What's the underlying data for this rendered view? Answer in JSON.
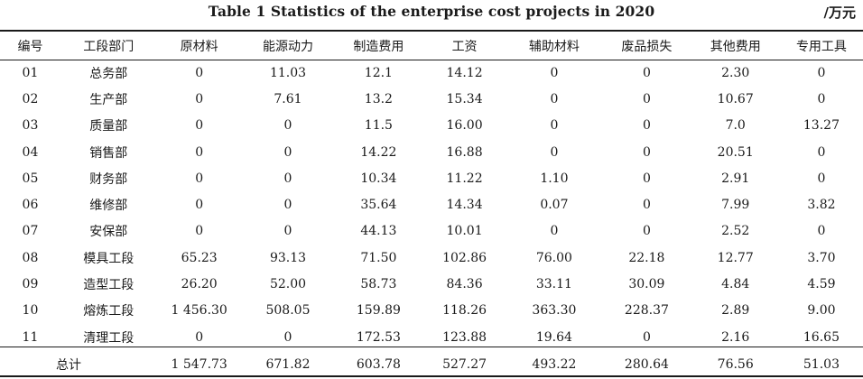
{
  "title": "Table 1 Statistics of the enterprise cost projects in 2020",
  "unit": "/万元",
  "columns": [
    "编号",
    "工段部门",
    "原材料",
    "能源动力",
    "制造费用",
    "工资",
    "辅助材料",
    "废品损失",
    "其他费用",
    "专用工具"
  ],
  "rows": [
    [
      "01",
      "总务部",
      "0",
      "11.03",
      "12.1",
      "14.12",
      "0",
      "0",
      "2.30",
      "0"
    ],
    [
      "02",
      "生产部",
      "0",
      "7.61",
      "13.2",
      "15.34",
      "0",
      "0",
      "10.67",
      "0"
    ],
    [
      "03",
      "质量部",
      "0",
      "0",
      "11.5",
      "16.00",
      "0",
      "0",
      "7.0",
      "13.27"
    ],
    [
      "04",
      "销售部",
      "0",
      "0",
      "14.22",
      "16.88",
      "0",
      "0",
      "20.51",
      "0"
    ],
    [
      "05",
      "财务部",
      "0",
      "0",
      "10.34",
      "11.22",
      "1.10",
      "0",
      "2.91",
      "0"
    ],
    [
      "06",
      "维修部",
      "0",
      "0",
      "35.64",
      "14.34",
      "0.07",
      "0",
      "7.99",
      "3.82"
    ],
    [
      "07",
      "安保部",
      "0",
      "0",
      "44.13",
      "10.01",
      "0",
      "0",
      "2.52",
      "0"
    ],
    [
      "08",
      "模具工段",
      "65.23",
      "93.13",
      "71.50",
      "102.86",
      "76.00",
      "22.18",
      "12.77",
      "3.70"
    ],
    [
      "09",
      "造型工段",
      "26.20",
      "52.00",
      "58.73",
      "84.36",
      "33.11",
      "30.09",
      "4.84",
      "4.59"
    ],
    [
      "10",
      "熔炼工段",
      "1 456.30",
      "508.05",
      "159.89",
      "118.26",
      "363.30",
      "228.37",
      "2.89",
      "9.00"
    ],
    [
      "11",
      "清理工段",
      "0",
      "0",
      "172.53",
      "123.88",
      "19.64",
      "0",
      "2.16",
      "16.65"
    ]
  ],
  "total": {
    "label": "总计",
    "values": [
      "1 547.73",
      "671.82",
      "603.78",
      "527.27",
      "493.22",
      "280.64",
      "76.56",
      "51.03"
    ]
  }
}
